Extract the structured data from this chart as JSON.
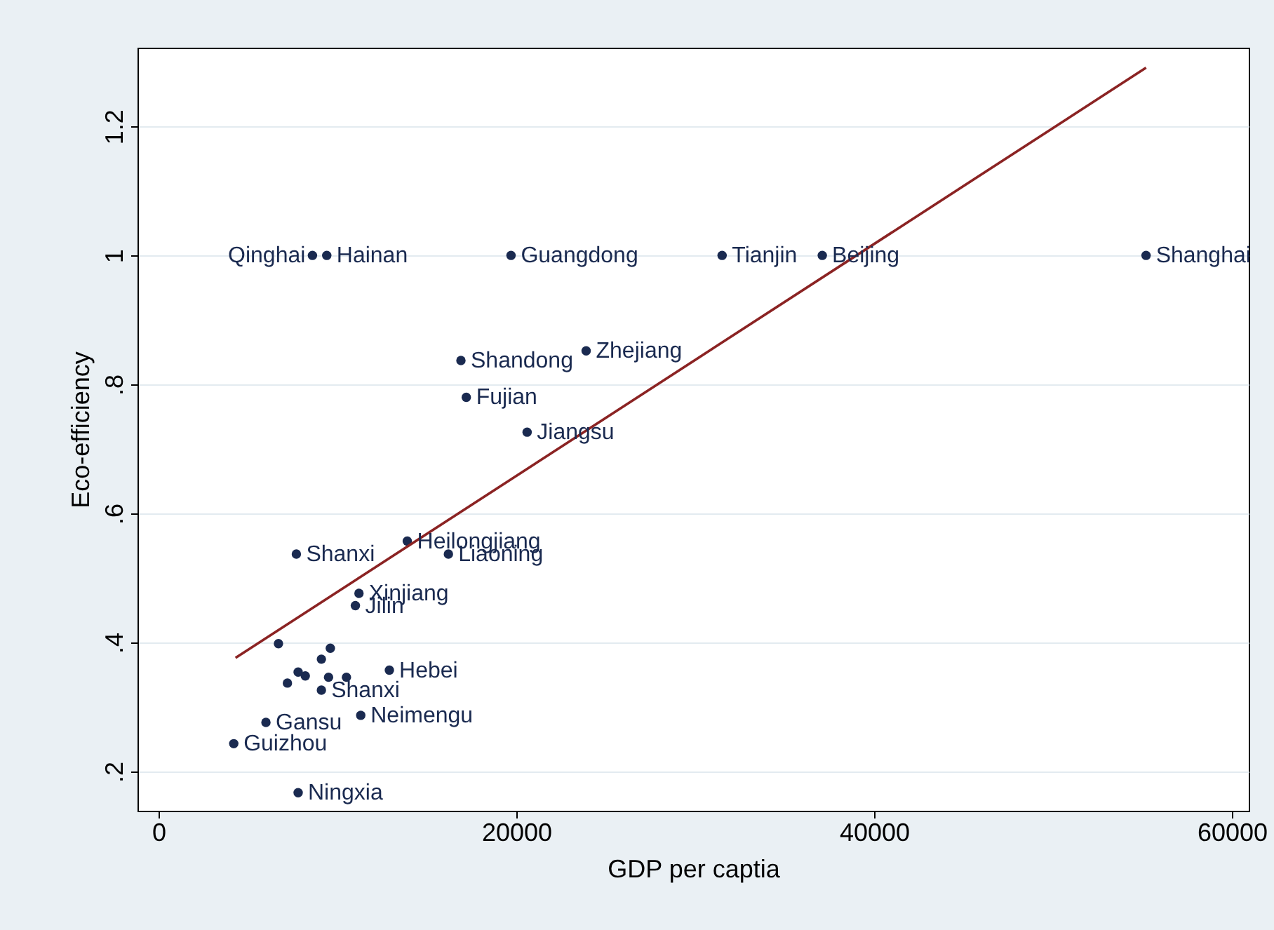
{
  "chart_data": {
    "type": "scatter",
    "xlabel": "GDP per captia",
    "ylabel": "Eco-efficiency",
    "xlim": [
      -1180,
      60940
    ],
    "ylim": [
      0.139,
      1.322
    ],
    "xticks": [
      0,
      20000,
      40000,
      60000
    ],
    "yticks": [
      {
        "value": 0.2,
        "label": ".2"
      },
      {
        "value": 0.4,
        "label": ".4"
      },
      {
        "value": 0.6,
        "label": ".6"
      },
      {
        "value": 0.8,
        "label": ".8"
      },
      {
        "value": 1,
        "label": "1"
      },
      {
        "value": 1.2,
        "label": "1.2"
      }
    ],
    "grid": "y",
    "series": [
      {
        "marker": "circle",
        "color": "#1a2a50",
        "x": [
          8600,
          9400,
          19700,
          31500,
          37100,
          55200,
          23900,
          16900,
          17200,
          20600,
          13900,
          16200,
          7700,
          11200,
          11000,
          12900,
          11300,
          9100,
          6000,
          4200,
          7800,
          6700,
          9600,
          9100,
          7800,
          8200,
          7200,
          9500,
          10500
        ],
        "values": [
          1,
          1,
          1,
          1,
          1,
          1,
          0.852,
          0.837,
          0.78,
          0.726,
          0.557,
          0.537,
          0.537,
          0.476,
          0.457,
          0.357,
          0.287,
          0.326,
          0.276,
          0.243,
          0.167,
          0.398,
          0.391,
          0.374,
          0.354,
          0.348,
          0.337,
          0.346,
          0.346
        ]
      },
      {
        "type": "line",
        "marker": "none",
        "color": "#8b2323",
        "x": [
          4300,
          55200
        ],
        "values": [
          0.376,
          1.291
        ]
      }
    ],
    "annotations": [
      {
        "text": "Qinghai",
        "x": 8600,
        "y": 1
      },
      {
        "text": "Hainan",
        "x": 9400,
        "y": 1
      },
      {
        "text": "Guangdong",
        "x": 19700,
        "y": 1
      },
      {
        "text": "Tianjin",
        "x": 31500,
        "y": 1
      },
      {
        "text": "Beijing",
        "x": 37100,
        "y": 1
      },
      {
        "text": "Shanghai",
        "x": 55200,
        "y": 1
      },
      {
        "text": "Zhejiang",
        "x": 23900,
        "y": 0.852
      },
      {
        "text": "Shandong",
        "x": 16900,
        "y": 0.837
      },
      {
        "text": "Fujian",
        "x": 17200,
        "y": 0.78
      },
      {
        "text": "Jiangsu",
        "x": 20600,
        "y": 0.726
      },
      {
        "text": "Heilongjiang",
        "x": 13900,
        "y": 0.557
      },
      {
        "text": "Liaoning",
        "x": 16200,
        "y": 0.537
      },
      {
        "text": "Shanxi",
        "x": 7700,
        "y": 0.537
      },
      {
        "text": "Xinjiang",
        "x": 11200,
        "y": 0.476
      },
      {
        "text": "Jilin",
        "x": 11000,
        "y": 0.457
      },
      {
        "text": "Hebei",
        "x": 12900,
        "y": 0.357
      },
      {
        "text": "Neimengu",
        "x": 11300,
        "y": 0.287
      },
      {
        "text": "Shanxi",
        "x": 9100,
        "y": 0.326
      },
      {
        "text": "Gansu",
        "x": 6000,
        "y": 0.276
      },
      {
        "text": "Guizhou",
        "x": 4200,
        "y": 0.243
      },
      {
        "text": "Ningxia",
        "x": 7800,
        "y": 0.167
      }
    ]
  }
}
